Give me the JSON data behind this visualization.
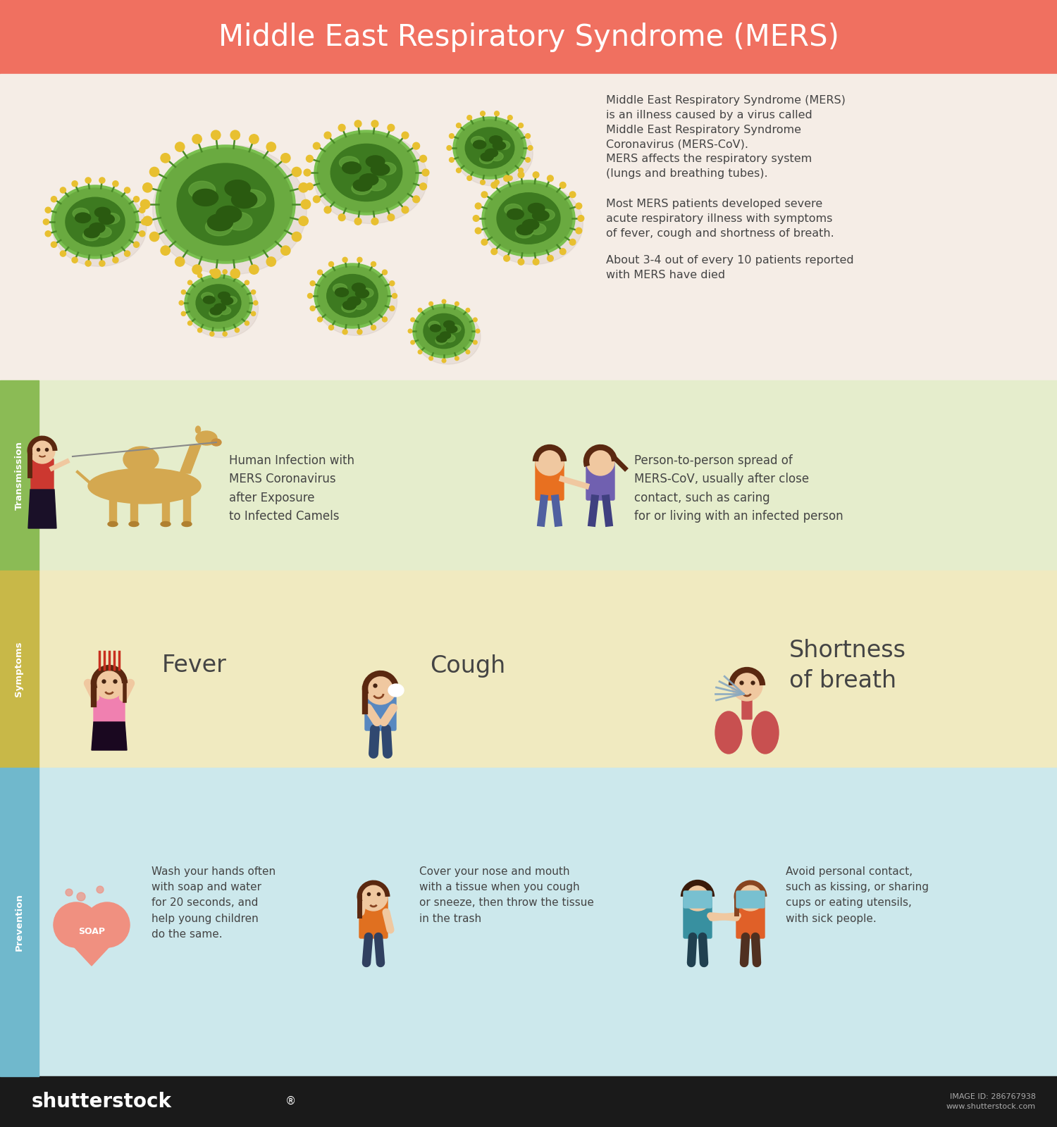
{
  "title": "Middle East Respiratory Syndrome (MERS)",
  "title_color": "#FFFFFF",
  "header_bg": "#F07060",
  "section1_bg": "#F5EDE6",
  "section2_bg": "#E5EDCC",
  "section3_bg": "#F0EAC0",
  "section4_bg": "#CCE8EC",
  "sidebar_transmission": "#8BBB55",
  "sidebar_symptoms": "#C8B848",
  "sidebar_prevention": "#70B8CC",
  "virus_outer": "#6AAA40",
  "virus_inner": "#3D7A20",
  "virus_spike": "#4A8A28",
  "virus_dot": "#E8C030",
  "virus_spot": "#2A5A10",
  "virus_light": "#7AC050",
  "text_dark": "#444444",
  "description_paragraphs": [
    "Middle East Respiratory Syndrome (MERS)\nis an illness caused by a virus called\nMiddle East Respiratory Syndrome\nCoronavirus (MERS-CoV).",
    "MERS affects the respiratory system\n(lungs and breathing tubes).",
    "Most MERS patients developed severe\nacute respiratory illness with symptoms\nof fever, cough and shortness of breath.",
    "About 3-4 out of every 10 patients reported\nwith MERS have died"
  ],
  "transmission_text1": "Human Infection with\nMERS Coronavirus\nafter Exposure\nto Infected Camels",
  "transmission_text2": "Person-to-person spread of\nMERS-CoV, usually after close\ncontact, such as caring\nfor or living with an infected person",
  "symptom1": "Fever",
  "symptom2": "Cough",
  "symptom3": "Shortness\nof breath",
  "prevention1": "Wash your hands often\nwith soap and water\nfor 20 seconds, and\nhelp young children\ndo the same.",
  "prevention2": "Cover your nose and mouth\nwith a tissue when you cough\nor sneeze, then throw the tissue\nin the trash",
  "prevention3": "Avoid personal contact,\nsuch as kissing, or sharing\ncups or eating utensils,\nwith sick people.",
  "label_transmission": "Transmission",
  "label_symptoms": "Symptoms",
  "label_prevention": "Prevention",
  "shutterstock_text": "shutterstock",
  "image_id": "IMAGE ID: 286767938",
  "website": "www.shutterstock.com",
  "viruses": [
    [
      1.35,
      12.85,
      0.58,
      0.48,
      22
    ],
    [
      3.2,
      13.1,
      0.95,
      0.8,
      26
    ],
    [
      5.2,
      13.55,
      0.7,
      0.56,
      22
    ],
    [
      6.95,
      13.9,
      0.48,
      0.4,
      18
    ],
    [
      7.5,
      12.9,
      0.62,
      0.5,
      22
    ],
    [
      3.1,
      11.7,
      0.44,
      0.36,
      18
    ],
    [
      5.0,
      11.8,
      0.5,
      0.42,
      18
    ],
    [
      6.3,
      11.3,
      0.4,
      0.34,
      16
    ]
  ]
}
